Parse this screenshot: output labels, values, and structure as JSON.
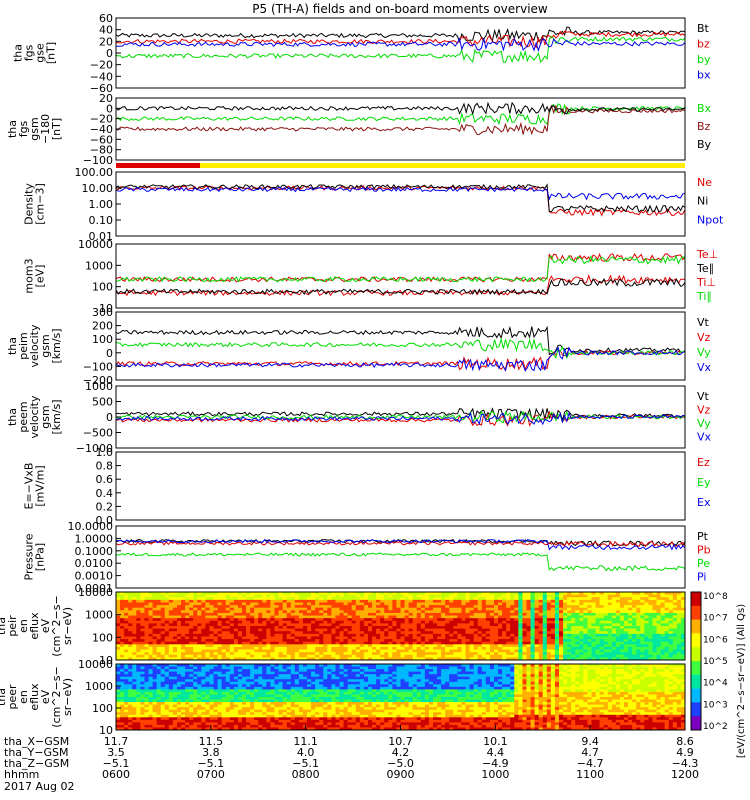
{
  "title": "P5 (TH-A) fields and on-board moments overview",
  "colors": {
    "black": "#000000",
    "red": "#e00000",
    "green": "#00dd00",
    "blue": "#0000ee",
    "darkred": "#8b1010"
  },
  "chart_data": [
    {
      "type": "line",
      "ylabel": [
        "tha",
        "fgs",
        "gse",
        "[nT]"
      ],
      "ylim": [
        -60,
        60
      ],
      "ticks": [
        "60",
        "40",
        "20",
        "0",
        "−20",
        "−40",
        "−60"
      ],
      "series": [
        {
          "name": "Bt",
          "color": "black",
          "level": 30,
          "late": 35
        },
        {
          "name": "bz",
          "color": "red",
          "level": 20,
          "late": 32
        },
        {
          "name": "by",
          "color": "green",
          "level": -5,
          "late": 24
        },
        {
          "name": "bx",
          "color": "blue",
          "level": 15,
          "late": 16
        }
      ]
    },
    {
      "type": "line",
      "ylabel": [
        "tha",
        "fgs",
        "gsm",
        "−180",
        "[nT]"
      ],
      "ylim": [
        -100,
        20
      ],
      "ticks": [
        "20",
        "0",
        "−20",
        "−40",
        "−60",
        "−80",
        "−100"
      ],
      "series": [
        {
          "name": "Bx",
          "color": "green",
          "level": -20,
          "late": 0
        },
        {
          "name": "Bz",
          "color": "darkred",
          "level": -40,
          "late": -5
        },
        {
          "name": "By",
          "color": "black",
          "level": 0,
          "late": -2
        }
      ]
    },
    {
      "type": "line",
      "ylabel": [
        "Density",
        "[cm−3]"
      ],
      "ylim": [
        0.01,
        100
      ],
      "log": true,
      "ticks": [
        "100.00",
        "10.00",
        "1.00",
        "0.10",
        "0.01"
      ],
      "series": [
        {
          "name": "Ne",
          "color": "red",
          "level": 10,
          "late": 0.3
        },
        {
          "name": "Ni",
          "color": "black",
          "level": 12,
          "late": 0.5
        },
        {
          "name": "Npot",
          "color": "blue",
          "level": 8,
          "late": 3
        }
      ]
    },
    {
      "type": "line",
      "ylabel": [
        "mom3",
        "[eV]"
      ],
      "ylim": [
        10,
        20000
      ],
      "log": true,
      "ticks": [
        "10000",
        "1000",
        "100",
        "10"
      ],
      "series": [
        {
          "name": "Te⊥",
          "color": "red",
          "level": 60,
          "late": 300
        },
        {
          "name": "Te∥",
          "color": "black",
          "level": 70,
          "late": 200
        },
        {
          "name": "Ti⊥",
          "color": "red",
          "level": 300,
          "late": 4000
        },
        {
          "name": "Ti∥",
          "color": "green",
          "level": 300,
          "late": 3000
        }
      ]
    },
    {
      "type": "line",
      "ylabel": [
        "tha",
        "peim",
        "velocity",
        "gsm",
        "[km/s]"
      ],
      "ylim": [
        -200,
        300
      ],
      "ticks": [
        "300",
        "200",
        "100",
        "0",
        "−100",
        "−200"
      ],
      "series": [
        {
          "name": "Vt",
          "color": "black",
          "level": 150,
          "late": 20
        },
        {
          "name": "Vz",
          "color": "red",
          "level": -80,
          "late": 0
        },
        {
          "name": "Vy",
          "color": "green",
          "level": 60,
          "late": 0
        },
        {
          "name": "Vx",
          "color": "blue",
          "level": -90,
          "late": 0
        }
      ]
    },
    {
      "type": "line",
      "ylabel": [
        "tha",
        "peem",
        "velocity",
        "gsm",
        "[km/s]"
      ],
      "ylim": [
        -1000,
        1000
      ],
      "ticks": [
        "1000",
        "500",
        "0",
        "−500",
        "−1000"
      ],
      "series": [
        {
          "name": "Vt",
          "color": "black",
          "level": 100,
          "late": 50
        },
        {
          "name": "Vz",
          "color": "red",
          "level": -100,
          "late": 0
        },
        {
          "name": "Vy",
          "color": "green",
          "level": 0,
          "late": 0
        },
        {
          "name": "Vx",
          "color": "blue",
          "level": -50,
          "late": 0
        }
      ]
    },
    {
      "type": "line",
      "ylabel": [
        "E=−VxB",
        "[mV/m]"
      ],
      "ylim": [
        0,
        1
      ],
      "ticks": [
        "1.0",
        "0.8",
        "0.6",
        "0.4",
        "0.2",
        "0.0"
      ],
      "series": [
        {
          "name": "Ez",
          "color": "red"
        },
        {
          "name": "Ey",
          "color": "green"
        },
        {
          "name": "Ex",
          "color": "blue"
        }
      ]
    },
    {
      "type": "line",
      "ylabel": [
        "Pressure",
        "[nPa]"
      ],
      "ylim": [
        0.0001,
        10
      ],
      "log": true,
      "ticks": [
        "10.0000",
        "1.0000",
        "0.1000",
        "0.0100",
        "0.0010",
        "0.0001"
      ],
      "series": [
        {
          "name": "Pt",
          "color": "black",
          "level": 0.6,
          "late": 0.4
        },
        {
          "name": "Pb",
          "color": "red",
          "level": 0.4,
          "late": 0.35
        },
        {
          "name": "Pe",
          "color": "green",
          "level": 0.05,
          "late": 0.004
        },
        {
          "name": "Pi",
          "color": "blue",
          "level": 0.6,
          "late": 0.2
        }
      ]
    },
    {
      "type": "heatmap",
      "ylabel": [
        "tha",
        "peir",
        "en",
        "eflux",
        "eV",
        "(cm^2−s−",
        "sr−eV)"
      ],
      "ylim": [
        10,
        10000
      ],
      "log": true,
      "ticks": [
        "10000",
        "1000",
        "100",
        "10"
      ]
    },
    {
      "type": "heatmap",
      "ylabel": [
        "tha",
        "peer",
        "en",
        "eflux",
        "eV",
        "(cm^2−s−",
        "sr−eV)"
      ],
      "ylim": [
        10,
        10000
      ],
      "log": true,
      "ticks": [
        "10000",
        "1000",
        "100",
        "10"
      ]
    }
  ],
  "colorbar": {
    "label": "[eV/(cm^2−s−sr−eV)] (All Qs)",
    "ticks": [
      "10^8",
      "10^7",
      "10^6",
      "10^5",
      "10^4",
      "10^3",
      "10^2"
    ]
  },
  "xaxis": {
    "rows": [
      "tha_X−GSM",
      "tha_Y−GSM",
      "tha_Z−GSM",
      "hhmm",
      "2017 Aug 02"
    ],
    "ticks": [
      [
        "11.7",
        "3.5",
        "−5.1",
        "0600"
      ],
      [
        "11.5",
        "3.8",
        "−5.1",
        "0700"
      ],
      [
        "11.1",
        "4.0",
        "−5.1",
        "0800"
      ],
      [
        "10.7",
        "4.2",
        "−5.0",
        "0900"
      ],
      [
        "10.1",
        "4.4",
        "−4.9",
        "1000"
      ],
      [
        "9.4",
        "4.7",
        "−4.7",
        "1100"
      ],
      [
        "8.6",
        "4.9",
        "−4.3",
        "1200"
      ]
    ]
  }
}
